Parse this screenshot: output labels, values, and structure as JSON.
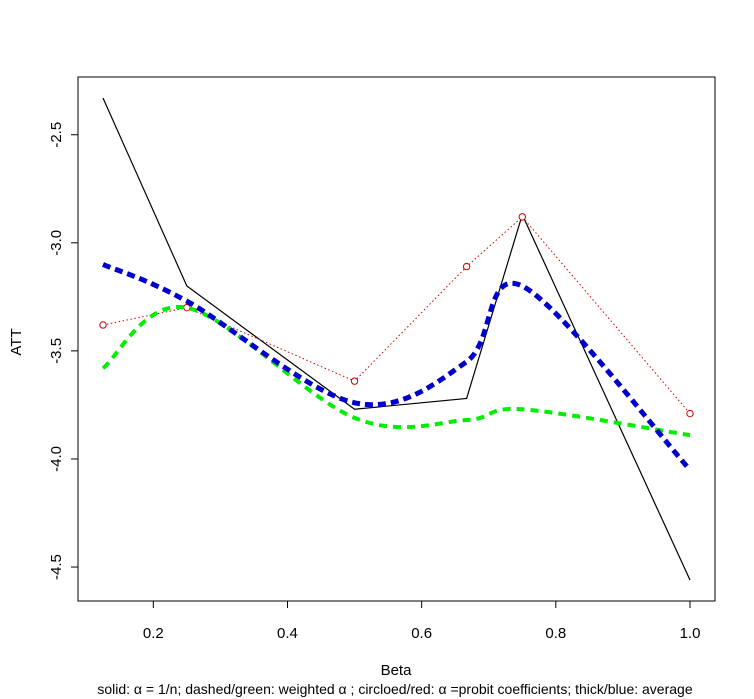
{
  "chart_data": {
    "type": "line",
    "title": "",
    "xlabel": "Beta",
    "ylabel": "ATT",
    "caption": "solid: α = 1/n; dashed/green: weighted α ; circloed/red: α =probit coefficients; thick/blue: average",
    "xlim": [
      0.125,
      1.0
    ],
    "ylim": [
      -4.56,
      -2.33
    ],
    "x_ticks": [
      0.2,
      0.4,
      0.6,
      0.8,
      1.0
    ],
    "x_tick_labels": [
      "0.2",
      "0.4",
      "0.6",
      "0.8",
      "1.0"
    ],
    "y_ticks": [
      -2.5,
      -3.0,
      -3.5,
      -4.0,
      -4.5
    ],
    "y_tick_labels": [
      "-2.5",
      "-3.0",
      "-3.5",
      "-4.0",
      "-4.5"
    ],
    "x": [
      0.125,
      0.25,
      0.5,
      0.667,
      0.75,
      1.0
    ],
    "series": [
      {
        "name": "α = 1/n",
        "style": "solid",
        "color": "#000000",
        "values": [
          -2.33,
          -3.2,
          -3.77,
          -3.72,
          -2.87,
          -4.56
        ]
      },
      {
        "name": "weighted α",
        "style": "dashed",
        "color": "#00ee00",
        "values": [
          -3.58,
          -3.3,
          -3.81,
          -3.82,
          -3.77,
          -3.89
        ]
      },
      {
        "name": "α = probit coefficients",
        "style": "dotted-circles",
        "color": "#cc0000",
        "values": [
          -3.38,
          -3.3,
          -3.64,
          -3.11,
          -2.88,
          -3.79
        ]
      },
      {
        "name": "average",
        "style": "thick-dashed",
        "color": "#0000cc",
        "values": [
          -3.1,
          -3.27,
          -3.74,
          -3.55,
          -3.2,
          -4.05
        ]
      }
    ]
  }
}
